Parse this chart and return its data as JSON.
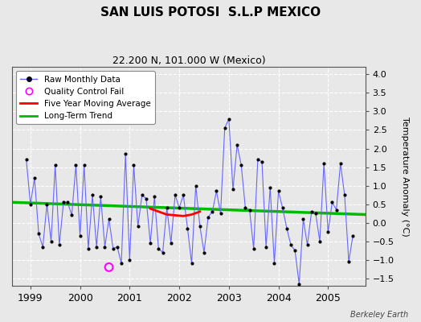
{
  "title": "SAN LUIS POTOSI  S.L.P MEXICO",
  "subtitle": "22.200 N, 101.000 W (Mexico)",
  "ylabel": "Temperature Anomaly (°C)",
  "credit": "Berkeley Earth",
  "background_color": "#e8e8e8",
  "plot_bg_color": "#e8e8e8",
  "ylim": [
    -1.7,
    4.2
  ],
  "yticks": [
    -1.5,
    -1.0,
    -0.5,
    0.0,
    0.5,
    1.0,
    1.5,
    2.0,
    2.5,
    3.0,
    3.5,
    4.0
  ],
  "xlim_start": 1998.63,
  "xlim_end": 2005.75,
  "raw_x": [
    1998.917,
    1999.0,
    1999.083,
    1999.167,
    1999.25,
    1999.333,
    1999.417,
    1999.5,
    1999.583,
    1999.667,
    1999.75,
    1999.833,
    1999.917,
    2000.0,
    2000.083,
    2000.167,
    2000.25,
    2000.333,
    2000.417,
    2000.5,
    2000.583,
    2000.667,
    2000.75,
    2000.833,
    2000.917,
    2001.0,
    2001.083,
    2001.167,
    2001.25,
    2001.333,
    2001.417,
    2001.5,
    2001.583,
    2001.667,
    2001.75,
    2001.833,
    2001.917,
    2002.0,
    2002.083,
    2002.167,
    2002.25,
    2002.333,
    2002.417,
    2002.5,
    2002.583,
    2002.667,
    2002.75,
    2002.833,
    2002.917,
    2003.0,
    2003.083,
    2003.167,
    2003.25,
    2003.333,
    2003.417,
    2003.5,
    2003.583,
    2003.667,
    2003.75,
    2003.833,
    2003.917,
    2004.0,
    2004.083,
    2004.167,
    2004.25,
    2004.333,
    2004.417,
    2004.5,
    2004.583,
    2004.667,
    2004.75,
    2004.833,
    2004.917,
    2005.0,
    2005.083,
    2005.167,
    2005.25,
    2005.333,
    2005.417,
    2005.5
  ],
  "raw_y": [
    1.7,
    0.5,
    1.2,
    -0.3,
    -0.65,
    0.5,
    -0.5,
    1.55,
    -0.6,
    0.55,
    0.55,
    0.2,
    1.55,
    -0.35,
    1.55,
    -0.7,
    0.75,
    -0.65,
    0.7,
    -0.65,
    0.1,
    -0.7,
    -0.65,
    -1.1,
    1.85,
    -1.0,
    1.55,
    -0.1,
    0.75,
    0.65,
    -0.55,
    0.7,
    -0.7,
    -0.8,
    0.4,
    -0.55,
    0.75,
    0.4,
    0.75,
    -0.15,
    -1.1,
    1.0,
    -0.1,
    -0.8,
    0.15,
    0.3,
    0.85,
    0.25,
    2.55,
    2.8,
    0.9,
    2.1,
    1.55,
    0.4,
    0.35,
    -0.7,
    1.7,
    1.65,
    -0.65,
    0.95,
    -1.1,
    0.85,
    0.4,
    -0.15,
    -0.6,
    -0.75,
    -1.65,
    0.1,
    -0.6,
    0.3,
    0.25,
    -0.5,
    1.6,
    -0.25,
    0.55,
    0.35,
    1.6,
    0.75,
    -1.05,
    -0.35
  ],
  "moving_avg_x": [
    2001.417,
    2001.583,
    2001.75,
    2001.917,
    2002.083,
    2002.25,
    2002.417
  ],
  "moving_avg_y": [
    0.38,
    0.3,
    0.22,
    0.2,
    0.18,
    0.22,
    0.3
  ],
  "trend_x": [
    1998.63,
    2005.75
  ],
  "trend_y": [
    0.55,
    0.22
  ],
  "raw_line_color": "#6666ff",
  "raw_marker_color": "#000000",
  "moving_avg_color": "#ff0000",
  "trend_color": "#00bb00",
  "qc_fail_x": [
    2000.583
  ],
  "qc_fail_y": [
    -1.2
  ],
  "xticks": [
    1999,
    2000,
    2001,
    2002,
    2003,
    2004,
    2005
  ],
  "xtick_labels": [
    "1999",
    "2000",
    "2001",
    "2002",
    "2003",
    "2004",
    "2005"
  ]
}
